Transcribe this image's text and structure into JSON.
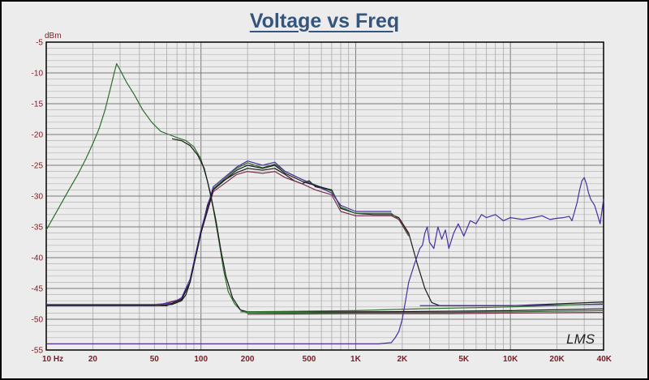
{
  "chart_data": {
    "type": "line",
    "title": "Voltage vs Freq",
    "ylabel": "dBm",
    "xlabel": "",
    "x_scale": "log",
    "xlim": [
      10,
      40000
    ],
    "ylim": [
      -55,
      -5
    ],
    "grid": true,
    "x_ticks": [
      {
        "value": 10,
        "label": "10  Hz"
      },
      {
        "value": 20,
        "label": "20"
      },
      {
        "value": 50,
        "label": "50"
      },
      {
        "value": 100,
        "label": "100"
      },
      {
        "value": 200,
        "label": "200"
      },
      {
        "value": 500,
        "label": "500"
      },
      {
        "value": 1000,
        "label": "1K"
      },
      {
        "value": 2000,
        "label": "2K"
      },
      {
        "value": 5000,
        "label": "5K"
      },
      {
        "value": 10000,
        "label": "10K"
      },
      {
        "value": 20000,
        "label": "20K"
      },
      {
        "value": 40000,
        "label": "40K"
      }
    ],
    "y_ticks": [
      -5,
      -10,
      -15,
      -20,
      -25,
      -30,
      -35,
      -40,
      -45,
      -50,
      -55
    ],
    "watermark": "LMS",
    "series": [
      {
        "color": "#2e6e2e",
        "points": [
          [
            10,
            -35.5
          ],
          [
            12,
            -32
          ],
          [
            14,
            -29
          ],
          [
            16,
            -26.5
          ],
          [
            18,
            -24
          ],
          [
            20,
            -21.5
          ],
          [
            22,
            -19
          ],
          [
            24,
            -16
          ],
          [
            26,
            -12.5
          ],
          [
            27.5,
            -10
          ],
          [
            28.5,
            -8.5
          ],
          [
            30,
            -9.5
          ],
          [
            33,
            -11.5
          ],
          [
            37,
            -13.5
          ],
          [
            42,
            -16
          ],
          [
            48,
            -18
          ],
          [
            55,
            -19.5
          ],
          [
            62,
            -20
          ],
          [
            70,
            -20.5
          ],
          [
            80,
            -21
          ],
          [
            90,
            -22
          ],
          [
            100,
            -24
          ],
          [
            110,
            -27.5
          ],
          [
            120,
            -32
          ],
          [
            130,
            -37
          ],
          [
            140,
            -42
          ],
          [
            150,
            -45.5
          ],
          [
            165,
            -47.5
          ],
          [
            180,
            -48.5
          ],
          [
            200,
            -49
          ],
          [
            400,
            -49
          ],
          [
            1000,
            -48.9
          ],
          [
            4000,
            -48.9
          ],
          [
            10000,
            -48.8
          ],
          [
            40000,
            -48.6
          ]
        ]
      },
      {
        "color": "#1a1a1a",
        "points": [
          [
            10,
            -47.8
          ],
          [
            50,
            -47.8
          ],
          [
            65,
            -47.6
          ],
          [
            75,
            -47
          ],
          [
            80,
            -46
          ],
          [
            85,
            -44
          ],
          [
            90,
            -41
          ],
          [
            100,
            -36
          ],
          [
            110,
            -31.5
          ],
          [
            120,
            -29
          ],
          [
            140,
            -27.5
          ],
          [
            170,
            -26.2
          ],
          [
            200,
            -25.5
          ],
          [
            250,
            -25.8
          ],
          [
            300,
            -25.5
          ],
          [
            350,
            -26.5
          ],
          [
            400,
            -27.5
          ],
          [
            450,
            -28
          ],
          [
            500,
            -27.5
          ],
          [
            550,
            -28.5
          ],
          [
            620,
            -28.8
          ],
          [
            700,
            -29
          ],
          [
            750,
            -30.5
          ],
          [
            800,
            -32
          ],
          [
            1000,
            -32.8
          ],
          [
            1300,
            -33
          ],
          [
            1700,
            -33
          ],
          [
            1900,
            -33.5
          ],
          [
            2200,
            -36
          ],
          [
            2500,
            -41
          ],
          [
            2800,
            -45
          ],
          [
            3100,
            -47.3
          ],
          [
            3500,
            -47.8
          ],
          [
            10000,
            -47.8
          ],
          [
            40000,
            -47.2
          ]
        ]
      },
      {
        "color": "#2e6e2e",
        "points": [
          [
            55,
            -47.6
          ],
          [
            75,
            -46.8
          ],
          [
            85,
            -44
          ],
          [
            100,
            -36
          ],
          [
            120,
            -28.8
          ],
          [
            170,
            -25.5
          ],
          [
            200,
            -24.6
          ],
          [
            250,
            -25.4
          ],
          [
            300,
            -24.8
          ],
          [
            350,
            -26
          ],
          [
            450,
            -27.3
          ],
          [
            550,
            -28.2
          ],
          [
            700,
            -29.2
          ],
          [
            800,
            -31.8
          ],
          [
            1000,
            -32.8
          ],
          [
            1700,
            -32.8
          ],
          [
            1900,
            -33.8
          ],
          [
            2200,
            -36.5
          ]
        ]
      },
      {
        "color": "#7a2e4e",
        "points": [
          [
            55,
            -47.6
          ],
          [
            75,
            -46.7
          ],
          [
            85,
            -44
          ],
          [
            100,
            -36
          ],
          [
            120,
            -29.3
          ],
          [
            170,
            -26.5
          ],
          [
            200,
            -26
          ],
          [
            250,
            -26.3
          ],
          [
            300,
            -26
          ],
          [
            350,
            -27
          ],
          [
            450,
            -28
          ],
          [
            550,
            -29
          ],
          [
            700,
            -29.8
          ],
          [
            800,
            -32.5
          ],
          [
            1000,
            -33.2
          ],
          [
            1700,
            -33.2
          ],
          [
            1900,
            -33.8
          ],
          [
            2200,
            -36.2
          ]
        ]
      },
      {
        "color": "#4a2ea0",
        "points": [
          [
            10,
            -54
          ],
          [
            600,
            -54
          ],
          [
            1000,
            -54
          ],
          [
            1400,
            -54
          ],
          [
            1700,
            -53.8
          ],
          [
            1800,
            -53
          ],
          [
            1900,
            -52
          ],
          [
            2000,
            -50
          ],
          [
            2100,
            -47
          ],
          [
            2200,
            -44
          ],
          [
            2400,
            -41
          ],
          [
            2600,
            -38.5
          ],
          [
            2700,
            -38
          ],
          [
            2800,
            -36
          ],
          [
            2900,
            -35
          ],
          [
            3000,
            -37.5
          ],
          [
            3200,
            -38.5
          ],
          [
            3400,
            -35
          ],
          [
            3600,
            -37
          ],
          [
            3800,
            -35.5
          ],
          [
            4000,
            -38.5
          ],
          [
            4300,
            -36
          ],
          [
            4600,
            -34.5
          ],
          [
            5000,
            -36.5
          ],
          [
            5500,
            -34
          ],
          [
            6000,
            -34.5
          ],
          [
            6500,
            -33
          ],
          [
            7000,
            -33.5
          ],
          [
            8000,
            -33
          ],
          [
            9000,
            -34
          ],
          [
            10000,
            -33.5
          ],
          [
            12000,
            -33.8
          ],
          [
            14000,
            -33.5
          ],
          [
            16000,
            -33.2
          ],
          [
            18000,
            -33.8
          ],
          [
            20000,
            -33.6
          ],
          [
            22000,
            -33.5
          ],
          [
            24000,
            -33.3
          ],
          [
            25000,
            -34
          ],
          [
            26000,
            -32.5
          ],
          [
            27000,
            -31
          ],
          [
            28000,
            -29
          ],
          [
            29000,
            -27.5
          ],
          [
            30000,
            -27
          ],
          [
            31000,
            -28
          ],
          [
            32000,
            -29.5
          ],
          [
            33000,
            -30.5
          ],
          [
            35000,
            -31.5
          ],
          [
            37000,
            -33.5
          ],
          [
            38000,
            -34.5
          ],
          [
            39000,
            -32.5
          ],
          [
            40000,
            -30.5
          ]
        ]
      },
      {
        "color": "#4a2ea0",
        "points": [
          [
            10,
            -47.6
          ],
          [
            50,
            -47.6
          ],
          [
            65,
            -47.4
          ],
          [
            75,
            -46.5
          ],
          [
            85,
            -43.5
          ],
          [
            100,
            -35.5
          ],
          [
            120,
            -28.5
          ],
          [
            170,
            -25.3
          ],
          [
            200,
            -24.3
          ],
          [
            250,
            -25
          ],
          [
            300,
            -24.5
          ],
          [
            350,
            -26
          ],
          [
            450,
            -27.3
          ],
          [
            550,
            -28.3
          ],
          [
            700,
            -29.5
          ],
          [
            800,
            -31.5
          ],
          [
            1000,
            -32.5
          ],
          [
            1700,
            -32.5
          ]
        ]
      },
      {
        "color": "#1a1a1a",
        "points": [
          [
            10,
            -47.8
          ],
          [
            60,
            -47.8
          ],
          [
            75,
            -46.8
          ],
          [
            85,
            -44
          ],
          [
            100,
            -36
          ],
          [
            120,
            -29
          ],
          [
            170,
            -25.8
          ],
          [
            200,
            -25
          ],
          [
            250,
            -25.5
          ],
          [
            300,
            -25
          ],
          [
            350,
            -26.3
          ],
          [
            450,
            -27.6
          ],
          [
            550,
            -28.3
          ],
          [
            700,
            -29
          ]
        ]
      },
      {
        "color": "#1a1a1a",
        "points": [
          [
            65,
            -20.7
          ],
          [
            75,
            -21
          ],
          [
            85,
            -21.8
          ],
          [
            95,
            -23.3
          ],
          [
            105,
            -25.5
          ],
          [
            115,
            -29.5
          ],
          [
            125,
            -34
          ],
          [
            135,
            -39
          ],
          [
            145,
            -43
          ],
          [
            160,
            -46.5
          ],
          [
            180,
            -48.5
          ],
          [
            200,
            -48.8
          ],
          [
            400,
            -48.8
          ],
          [
            1000,
            -48.8
          ],
          [
            4000,
            -48.7
          ],
          [
            10000,
            -48.6
          ],
          [
            40000,
            -48.3
          ]
        ]
      },
      {
        "color": "#4a2ea0",
        "points": [
          [
            2600,
            -47.8
          ],
          [
            5000,
            -47.8
          ],
          [
            10000,
            -47.8
          ],
          [
            40000,
            -47.6
          ]
        ]
      },
      {
        "color": "#7a2e4e",
        "points": [
          [
            200,
            -49.2
          ],
          [
            1000,
            -49.1
          ],
          [
            4000,
            -49.1
          ],
          [
            10000,
            -49
          ],
          [
            40000,
            -48.9
          ]
        ]
      },
      {
        "color": "#2e6e2e",
        "points": [
          [
            180,
            -48.8
          ],
          [
            1000,
            -48.6
          ],
          [
            2600,
            -48.3
          ],
          [
            10000,
            -48
          ],
          [
            40000,
            -47.5
          ]
        ]
      }
    ]
  }
}
